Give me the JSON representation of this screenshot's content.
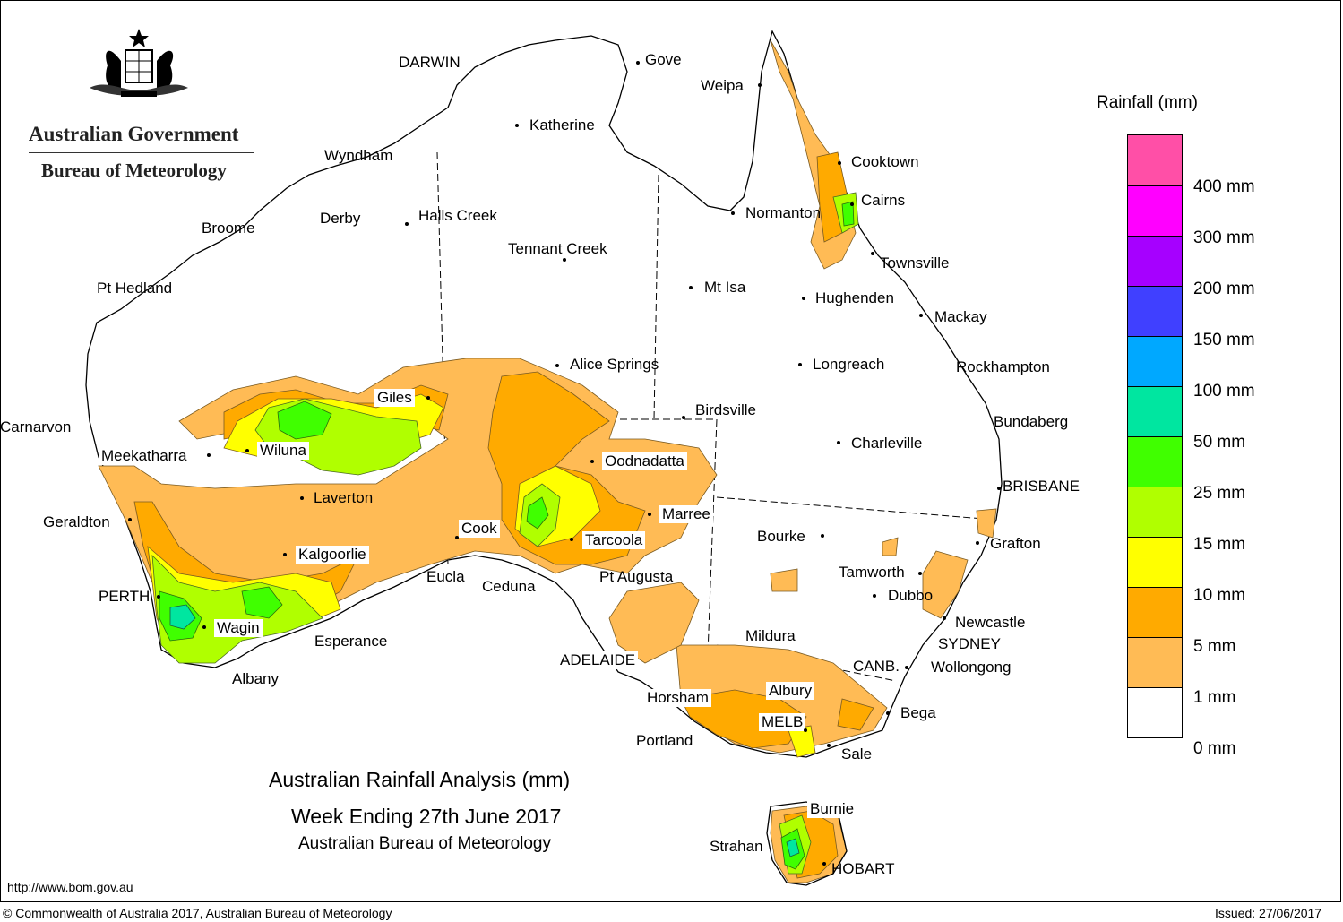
{
  "header": {
    "agency_line1": "Australian Government",
    "agency_line2": "Bureau of Meteorology"
  },
  "title": {
    "line1": "Australian Rainfall Analysis (mm)",
    "line2": "Week Ending 27th June 2017",
    "line3": "Australian Bureau of Meteorology"
  },
  "legend": {
    "title": "Rainfall (mm)",
    "colors": [
      "#ff4fa7",
      "#ff00ff",
      "#a600ff",
      "#4040ff",
      "#00a8ff",
      "#00e6a0",
      "#40ff00",
      "#b0ff00",
      "#ffff00",
      "#ffaa00",
      "#ffbb55",
      "#ffffff"
    ],
    "labels": [
      "400 mm",
      "300 mm",
      "200 mm",
      "150 mm",
      "100 mm",
      "50 mm",
      "25 mm",
      "15 mm",
      "10 mm",
      "5 mm",
      "1 mm",
      "0 mm"
    ]
  },
  "cities": [
    {
      "name": "DARWIN"
    },
    {
      "name": "Gove"
    },
    {
      "name": "Weipa"
    },
    {
      "name": "Katherine"
    },
    {
      "name": "Cooktown"
    },
    {
      "name": "Wyndham"
    },
    {
      "name": "Cairns"
    },
    {
      "name": "Normanton"
    },
    {
      "name": "Derby"
    },
    {
      "name": "Halls Creek"
    },
    {
      "name": "Broome"
    },
    {
      "name": "Tennant Creek"
    },
    {
      "name": "Townsville"
    },
    {
      "name": "Pt Hedland"
    },
    {
      "name": "Mt Isa"
    },
    {
      "name": "Hughenden"
    },
    {
      "name": "Mackay"
    },
    {
      "name": "Alice Springs"
    },
    {
      "name": "Longreach"
    },
    {
      "name": "Rockhampton"
    },
    {
      "name": "Giles"
    },
    {
      "name": "Birdsville"
    },
    {
      "name": "Bundaberg"
    },
    {
      "name": "Carnarvon"
    },
    {
      "name": "Charleville"
    },
    {
      "name": "Meekatharra"
    },
    {
      "name": "Wiluna"
    },
    {
      "name": "Oodnadatta"
    },
    {
      "name": "BRISBANE"
    },
    {
      "name": "Laverton"
    },
    {
      "name": "Marree"
    },
    {
      "name": "Geraldton"
    },
    {
      "name": "Cook"
    },
    {
      "name": "Bourke"
    },
    {
      "name": "Tarcoola"
    },
    {
      "name": "Grafton"
    },
    {
      "name": "Kalgoorlie"
    },
    {
      "name": "Tamworth"
    },
    {
      "name": "Eucla"
    },
    {
      "name": "Pt Augusta"
    },
    {
      "name": "Ceduna"
    },
    {
      "name": "PERTH"
    },
    {
      "name": "Dubbo"
    },
    {
      "name": "Newcastle"
    },
    {
      "name": "Wagin"
    },
    {
      "name": "Mildura"
    },
    {
      "name": "Esperance"
    },
    {
      "name": "SYDNEY"
    },
    {
      "name": "ADELAIDE"
    },
    {
      "name": "CANB."
    },
    {
      "name": "Wollongong"
    },
    {
      "name": "Albany"
    },
    {
      "name": "Horsham"
    },
    {
      "name": "Albury"
    },
    {
      "name": "Bega"
    },
    {
      "name": "MELB"
    },
    {
      "name": "Portland"
    },
    {
      "name": "Sale"
    },
    {
      "name": "Burnie"
    },
    {
      "name": "Strahan"
    },
    {
      "name": "HOBART"
    }
  ],
  "footer": {
    "url": "http://www.bom.gov.au",
    "copyright": "© Commonwealth of Australia 2017, Australian Bureau of Meteorology",
    "issued": "Issued: 27/06/2017"
  }
}
